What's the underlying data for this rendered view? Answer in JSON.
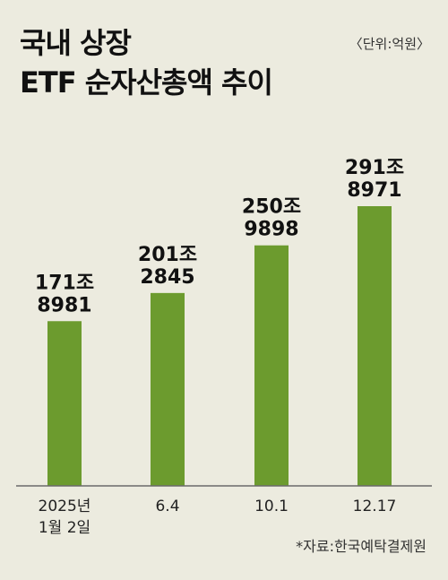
{
  "chart_data": {
    "type": "bar",
    "title_lines": [
      "국내 상장",
      "ETF 순자산총액 추이"
    ],
    "unit_label": "〈단위:억원〉",
    "source": "*자료:한국예탁결제원",
    "categories": [
      "2025년\n1월 2일",
      "6.4",
      "10.1",
      "12.17"
    ],
    "values": [
      1718981,
      2012845,
      2509898,
      2918971
    ],
    "value_labels": [
      [
        "171조",
        "8981"
      ],
      [
        "201조",
        "2845"
      ],
      [
        "250조",
        "9898"
      ],
      [
        "291조",
        "8971"
      ]
    ],
    "colors": {
      "bar": "#6c9b2e",
      "background": "#ecebdf"
    }
  }
}
